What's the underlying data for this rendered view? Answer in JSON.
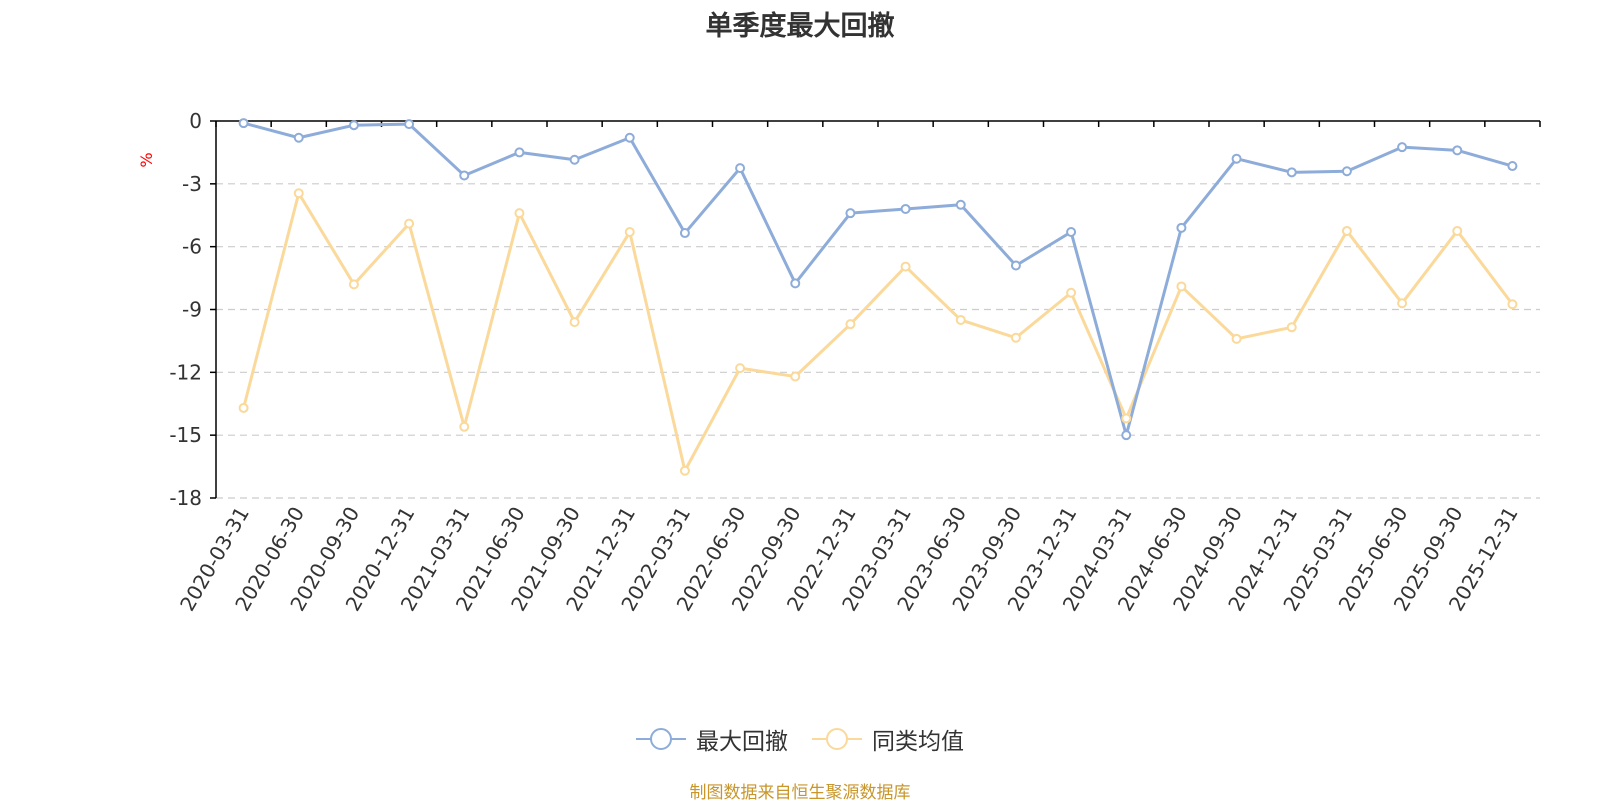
{
  "chart_data": {
    "type": "line",
    "title": "单季度最大回撤",
    "ylabel": "%",
    "xlabel": "",
    "ylim": [
      -18,
      0
    ],
    "yticks": [
      0,
      -3,
      -6,
      -9,
      -12,
      -15,
      -18
    ],
    "grid": true,
    "legend_position": "bottom",
    "categories": [
      "2020-03-31",
      "2020-06-30",
      "2020-09-30",
      "2020-12-31",
      "2021-03-31",
      "2021-06-30",
      "2021-09-30",
      "2021-12-31",
      "2022-03-31",
      "2022-06-30",
      "2022-09-30",
      "2022-12-31",
      "2023-03-31",
      "2023-06-30",
      "2023-09-30",
      "2023-12-31",
      "2024-03-31",
      "2024-06-30",
      "2024-09-30",
      "2024-12-31",
      "2025-03-31",
      "2025-06-30",
      "2025-09-30",
      "2025-12-31"
    ],
    "series": [
      {
        "name": "最大回撤",
        "color": "#8eacd9",
        "values": [
          -0.1,
          -0.8,
          -0.2,
          -0.15,
          -2.6,
          -1.5,
          -1.85,
          -0.8,
          -5.35,
          -2.25,
          -7.75,
          -4.4,
          -4.2,
          -4.0,
          -6.9,
          -5.3,
          -15.0,
          -5.1,
          -1.8,
          -2.45,
          -2.4,
          -1.25,
          -1.4,
          -2.15
        ]
      },
      {
        "name": "同类均值",
        "color": "#fad99a",
        "values": [
          -13.7,
          -3.45,
          -7.8,
          -4.9,
          -14.6,
          -4.4,
          -9.6,
          -5.3,
          -16.7,
          -11.8,
          -12.2,
          -9.7,
          -6.95,
          -9.5,
          -10.35,
          -8.2,
          -14.2,
          -7.9,
          -10.4,
          -9.85,
          -5.25,
          -8.7,
          -5.25,
          -8.75
        ]
      }
    ]
  },
  "footer": {
    "source": "制图数据来自恒生聚源数据库"
  },
  "colors": {
    "axis": "#000000",
    "grid": "#cccccc",
    "ylabel": "#ff0000",
    "source": "#c8962a"
  }
}
